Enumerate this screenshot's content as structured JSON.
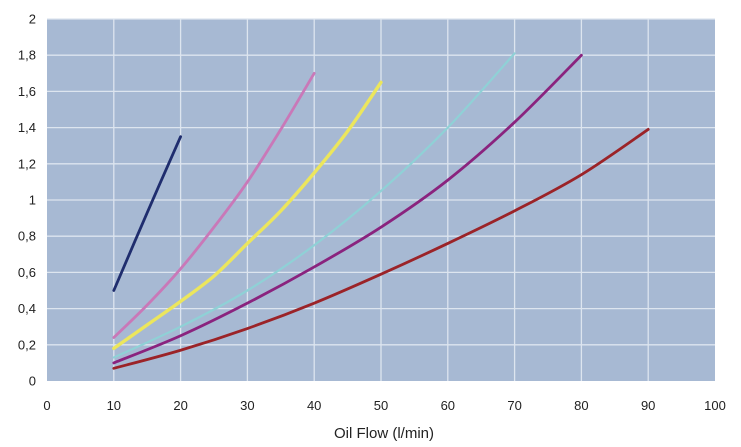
{
  "chart_data": {
    "type": "line",
    "title": "",
    "xlabel": "Oil Flow (l/min)",
    "ylabel": "",
    "xlim": [
      0,
      100
    ],
    "ylim": [
      0,
      2
    ],
    "x_ticks": [
      0,
      10,
      20,
      30,
      40,
      50,
      60,
      70,
      80,
      90,
      100
    ],
    "x_tick_labels": [
      "0",
      "10",
      "20",
      "30",
      "40",
      "50",
      "60",
      "70",
      "80",
      "90",
      "100"
    ],
    "y_ticks": [
      0,
      0.2,
      0.4,
      0.6,
      0.8,
      1,
      1.2,
      1.4,
      1.6,
      1.8,
      2
    ],
    "y_tick_labels": [
      "0",
      "0,2",
      "0,4",
      "0,6",
      "0,8",
      "1",
      "1,2",
      "1,4",
      "1,6",
      "1,8",
      "2"
    ],
    "grid": true,
    "plot_background": "#a7b9d3",
    "grid_color": "#dde5ef",
    "series": [
      {
        "color": "#1f2d6e",
        "width": 2.8,
        "points": [
          [
            10,
            0.5
          ],
          [
            15,
            0.93
          ],
          [
            20,
            1.35
          ]
        ]
      },
      {
        "color": "#c978b8",
        "width": 2.8,
        "points": [
          [
            10,
            0.24
          ],
          [
            15,
            0.42
          ],
          [
            20,
            0.62
          ],
          [
            25,
            0.85
          ],
          [
            30,
            1.1
          ],
          [
            35,
            1.39
          ],
          [
            40,
            1.7
          ]
        ]
      },
      {
        "color": "#ece65c",
        "width": 3.4,
        "points": [
          [
            10,
            0.18
          ],
          [
            15,
            0.31
          ],
          [
            20,
            0.44
          ],
          [
            25,
            0.58
          ],
          [
            30,
            0.76
          ],
          [
            35,
            0.94
          ],
          [
            40,
            1.15
          ],
          [
            45,
            1.38
          ],
          [
            50,
            1.65
          ]
        ]
      },
      {
        "color": "#8fd1d6",
        "width": 2.2,
        "points": [
          [
            10,
            0.13
          ],
          [
            20,
            0.3
          ],
          [
            30,
            0.5
          ],
          [
            40,
            0.75
          ],
          [
            50,
            1.05
          ],
          [
            60,
            1.4
          ],
          [
            70,
            1.81
          ]
        ]
      },
      {
        "color": "#8a237e",
        "width": 2.8,
        "points": [
          [
            10,
            0.1
          ],
          [
            20,
            0.25
          ],
          [
            30,
            0.43
          ],
          [
            40,
            0.63
          ],
          [
            50,
            0.85
          ],
          [
            60,
            1.11
          ],
          [
            70,
            1.43
          ],
          [
            80,
            1.8
          ]
        ]
      },
      {
        "color": "#9b2328",
        "width": 2.8,
        "points": [
          [
            10,
            0.07
          ],
          [
            20,
            0.17
          ],
          [
            30,
            0.29
          ],
          [
            40,
            0.43
          ],
          [
            50,
            0.59
          ],
          [
            60,
            0.76
          ],
          [
            70,
            0.94
          ],
          [
            80,
            1.14
          ],
          [
            90,
            1.39
          ]
        ]
      }
    ]
  }
}
